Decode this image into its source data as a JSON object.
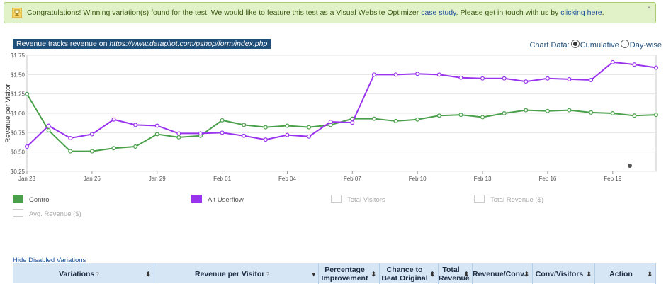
{
  "alert": {
    "text_before": "Congratulations! Winning variation(s) found for the test. We would like to feature this test as a Visual Website Optimizer ",
    "link1": "case study",
    "text_middle": ". Please get in touch with us by ",
    "link2": "clicking here",
    "text_after": ".",
    "close": "×"
  },
  "chart_header": {
    "title_prefix": "Revenue tracks revenue on ",
    "title_url": "https://www.datapilot.com/pshop/form/index.php",
    "chart_data_label": "Chart Data:",
    "option_cumulative": "Cumulative",
    "option_daywise": "Day-wise",
    "selected": "Cumulative"
  },
  "chart_data": {
    "type": "line",
    "ylabel": "Revenue per Visitor",
    "xlabel": "",
    "ylim": [
      0.25,
      1.75
    ],
    "yticks": [
      "$0.25",
      "$0.50",
      "$0.75",
      "$1.00",
      "$1.25",
      "$1.50",
      "$1.75"
    ],
    "xticks": [
      {
        "label": "Jan 23",
        "day": 0
      },
      {
        "label": "Jan 26",
        "day": 3
      },
      {
        "label": "Jan 29",
        "day": 6
      },
      {
        "label": "Feb 01",
        "day": 9
      },
      {
        "label": "Feb 04",
        "day": 12
      },
      {
        "label": "Feb 07",
        "day": 15
      },
      {
        "label": "Feb 10",
        "day": 18
      },
      {
        "label": "Feb 13",
        "day": 21
      },
      {
        "label": "Feb 16",
        "day": 24
      },
      {
        "label": "Feb 19",
        "day": 27
      }
    ],
    "x_days_from_jan23": [
      0,
      1,
      2,
      3,
      4,
      5,
      6,
      7,
      8,
      9,
      10,
      11,
      12,
      13,
      14,
      15,
      16,
      17,
      18,
      19,
      20,
      21,
      22,
      23,
      24,
      25,
      26,
      27,
      28,
      29
    ],
    "series": [
      {
        "name": "Control",
        "color": "#4aa04a",
        "values": [
          1.25,
          0.78,
          0.51,
          0.51,
          0.55,
          0.57,
          0.73,
          0.69,
          0.71,
          0.91,
          0.85,
          0.82,
          0.84,
          0.82,
          0.85,
          0.93,
          0.93,
          0.9,
          0.92,
          0.97,
          0.98,
          0.95,
          1.0,
          1.04,
          1.03,
          1.04,
          1.01,
          1.0,
          0.97,
          0.98
        ]
      },
      {
        "name": "Alt Userflow",
        "color": "#9933ee",
        "values": [
          0.57,
          0.84,
          0.68,
          0.73,
          0.92,
          0.85,
          0.84,
          0.74,
          0.74,
          0.75,
          0.71,
          0.66,
          0.72,
          0.7,
          0.89,
          0.88,
          1.5,
          1.5,
          1.51,
          1.5,
          1.46,
          1.45,
          1.45,
          1.41,
          1.45,
          1.44,
          1.43,
          1.66,
          1.63,
          1.59
        ]
      }
    ],
    "legend": [
      {
        "name": "Control",
        "color": "#4aa04a",
        "active": true
      },
      {
        "name": "Alt Userflow",
        "color": "#9933ee",
        "active": true
      },
      {
        "name": "Total Visitors",
        "color": "#ffffff",
        "active": false
      },
      {
        "name": "Total Revenue ($)",
        "color": "#ffffff",
        "active": false
      },
      {
        "name": "Avg. Revenue ($)",
        "color": "#ffffff",
        "active": false
      }
    ],
    "grid": true
  },
  "hide_disabled": "Hide Disabled Variations",
  "table": {
    "columns": [
      {
        "label": "Variations",
        "help": "?",
        "sort": "⬍"
      },
      {
        "label": "Revenue per Visitor",
        "help": "?",
        "sort": "▾"
      },
      {
        "label": "Percentage Improvement",
        "help": "",
        "sort": "⬍"
      },
      {
        "label": "Chance to Beat Original",
        "help": "",
        "sort": "⬍"
      },
      {
        "label": "Total Revenue",
        "help": "",
        "sort": "⬍"
      },
      {
        "label": "Revenue/Conv.",
        "help": "",
        "sort": "⬍"
      },
      {
        "label": "Conv/Visitors",
        "help": "",
        "sort": "⬍"
      },
      {
        "label": "Action",
        "help": "",
        "sort": "⬍"
      }
    ]
  }
}
